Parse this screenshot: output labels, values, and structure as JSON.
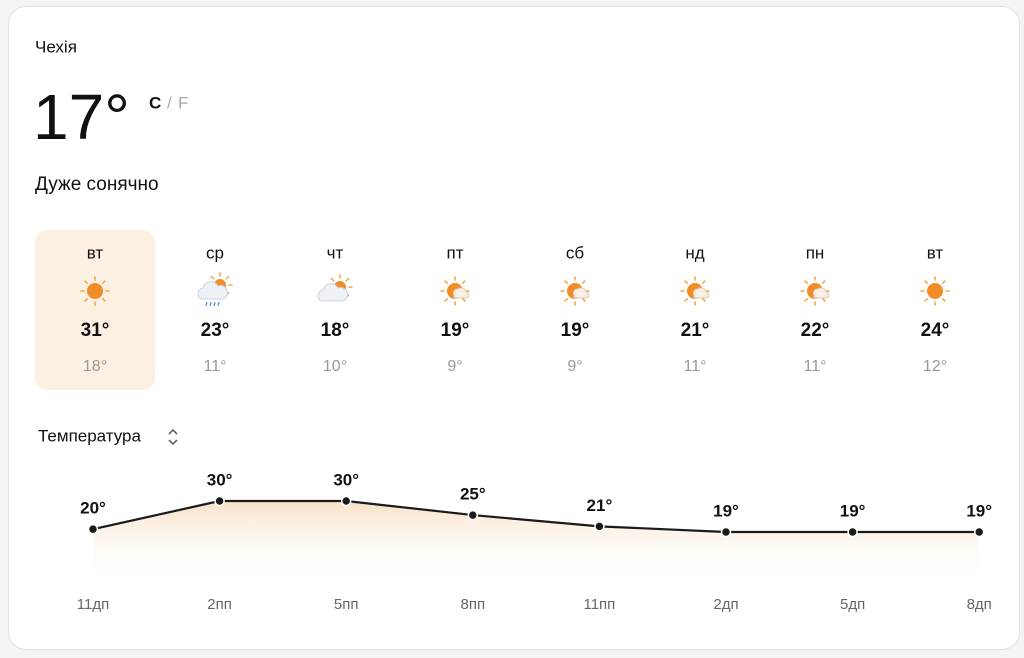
{
  "location": "Чехія",
  "current": {
    "temp": "17°",
    "unit_c": "C",
    "separator": "/",
    "unit_f": "F",
    "condition": "Дуже сонячно"
  },
  "days": [
    {
      "name": "вт",
      "high": "31°",
      "low": "18°"
    },
    {
      "name": "ср",
      "high": "23°",
      "low": "11°"
    },
    {
      "name": "чт",
      "high": "18°",
      "low": "10°"
    },
    {
      "name": "пт",
      "high": "19°",
      "low": "9°"
    },
    {
      "name": "сб",
      "high": "19°",
      "low": "9°"
    },
    {
      "name": "нд",
      "high": "21°",
      "low": "11°"
    },
    {
      "name": "пн",
      "high": "22°",
      "low": "11°"
    },
    {
      "name": "вт",
      "high": "24°",
      "low": "12°"
    }
  ],
  "chart_data": {
    "type": "line",
    "title": "Температура",
    "categories": [
      "11дп",
      "2пп",
      "5пп",
      "8пп",
      "11пп",
      "2дп",
      "5дп",
      "8дп"
    ],
    "values": [
      20,
      30,
      30,
      25,
      21,
      19,
      19,
      19
    ],
    "value_labels": [
      "20°",
      "30°",
      "30°",
      "25°",
      "21°",
      "19°",
      "19°",
      "19°"
    ],
    "color": "#1a1a1a"
  }
}
